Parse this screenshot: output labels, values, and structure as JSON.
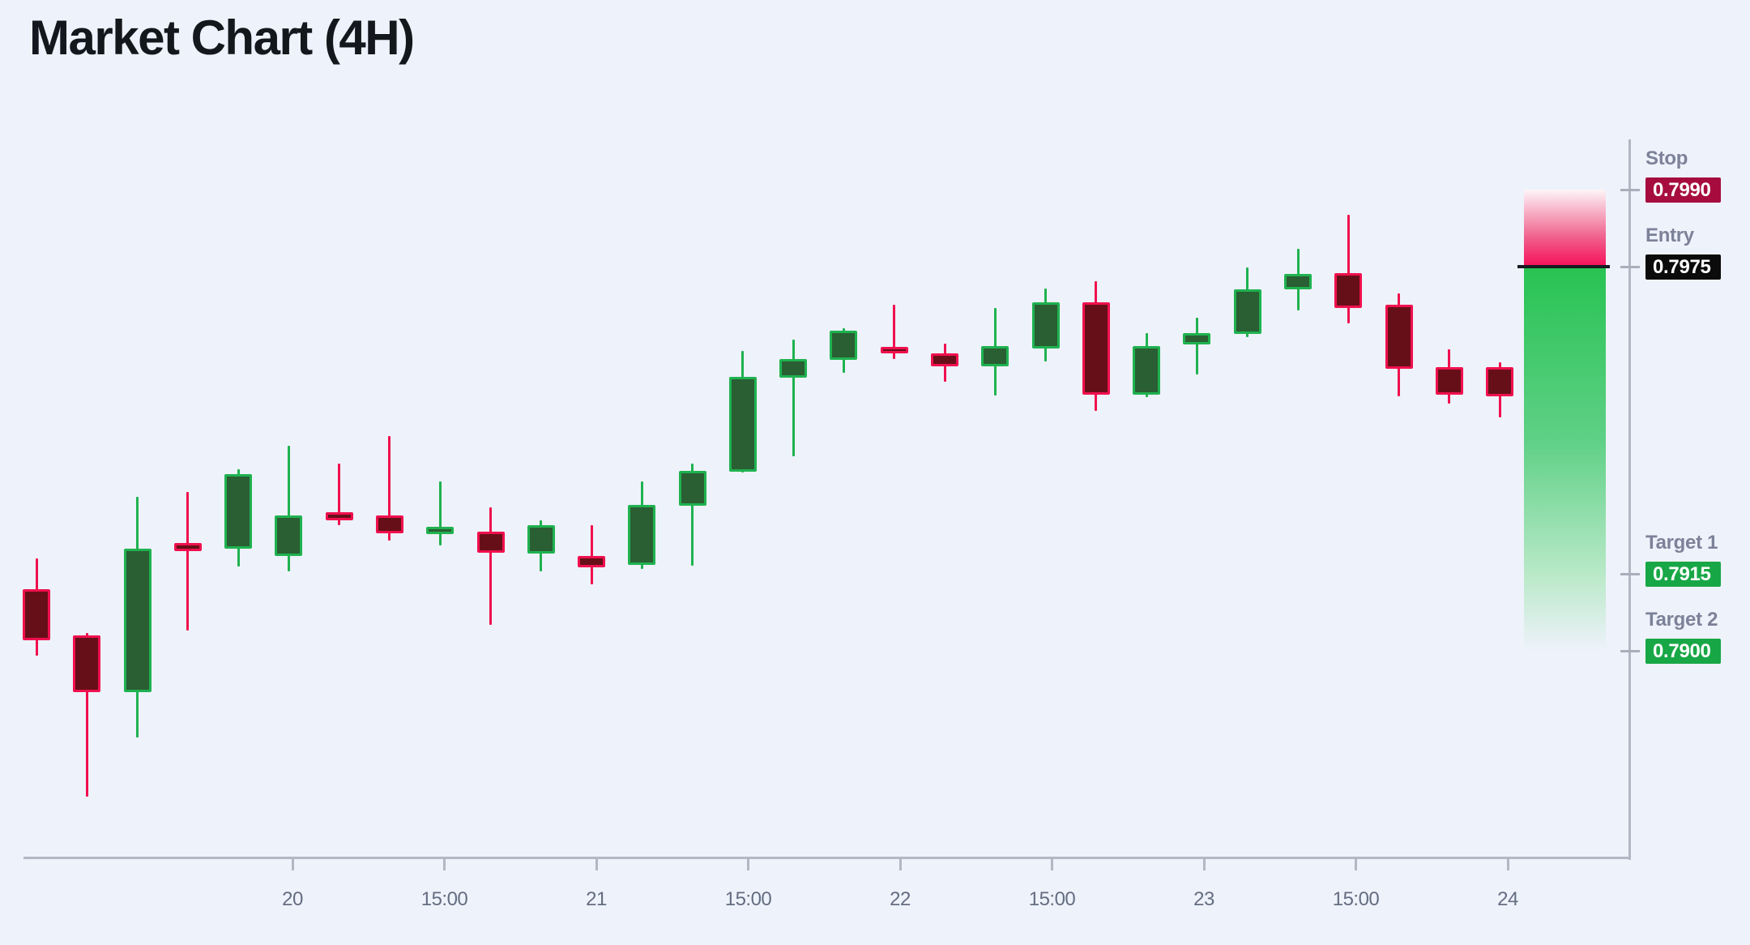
{
  "title": "Market Chart (4H)",
  "colors": {
    "background": "#eef2fb",
    "bull": "#1fb250",
    "bull_fill": "#2a5e33",
    "bear": "#f0104e",
    "bear_fill": "#670f18",
    "risk_zone": "#f7105b",
    "reward_zone": "#28c353",
    "entry_line": "#181b21",
    "axis": "#b3b7c3",
    "tick_text": "#646e81",
    "label_text": "#7c8298"
  },
  "chart_data": {
    "type": "candlestick",
    "title": "Market Chart (4H)",
    "timeframe": "4H",
    "legend": "none",
    "grid": "off",
    "x_tick_labels": [
      "20",
      "15:00",
      "21",
      "15:00",
      "22",
      "15:00",
      "23",
      "15:00",
      "24"
    ],
    "y_range_visible": [
      0.7871,
      0.799
    ],
    "candles": [
      {
        "o": 0.7912,
        "h": 0.7918,
        "l": 0.7899,
        "c": 0.7902
      },
      {
        "o": 0.7903,
        "h": 0.79035,
        "l": 0.78715,
        "c": 0.7892
      },
      {
        "o": 0.7892,
        "h": 0.793,
        "l": 0.7883,
        "c": 0.792
      },
      {
        "o": 0.7921,
        "h": 0.7931,
        "l": 0.7904,
        "c": 0.79195
      },
      {
        "o": 0.792,
        "h": 0.79355,
        "l": 0.79165,
        "c": 0.79345
      },
      {
        "o": 0.79185,
        "h": 0.794,
        "l": 0.79155,
        "c": 0.79265
      },
      {
        "o": 0.7927,
        "h": 0.79365,
        "l": 0.79245,
        "c": 0.79255
      },
      {
        "o": 0.79265,
        "h": 0.7942,
        "l": 0.79215,
        "c": 0.7923
      },
      {
        "o": 0.79228,
        "h": 0.7933,
        "l": 0.79205,
        "c": 0.79242
      },
      {
        "o": 0.79232,
        "h": 0.7928,
        "l": 0.7905,
        "c": 0.79192
      },
      {
        "o": 0.7919,
        "h": 0.79255,
        "l": 0.79155,
        "c": 0.79245
      },
      {
        "o": 0.79185,
        "h": 0.79245,
        "l": 0.7913,
        "c": 0.79163
      },
      {
        "o": 0.79168,
        "h": 0.7933,
        "l": 0.7916,
        "c": 0.79285
      },
      {
        "o": 0.79283,
        "h": 0.79366,
        "l": 0.79166,
        "c": 0.79351
      },
      {
        "o": 0.7935,
        "h": 0.79585,
        "l": 0.79348,
        "c": 0.79535
      },
      {
        "o": 0.79533,
        "h": 0.79608,
        "l": 0.7938,
        "c": 0.7957
      },
      {
        "o": 0.79568,
        "h": 0.7963,
        "l": 0.79542,
        "c": 0.79625
      },
      {
        "o": 0.79593,
        "h": 0.79676,
        "l": 0.7957,
        "c": 0.7958
      },
      {
        "o": 0.7958,
        "h": 0.796,
        "l": 0.79525,
        "c": 0.79555
      },
      {
        "o": 0.79555,
        "h": 0.7967,
        "l": 0.79498,
        "c": 0.79595
      },
      {
        "o": 0.7959,
        "h": 0.79708,
        "l": 0.79565,
        "c": 0.7968
      },
      {
        "o": 0.7968,
        "h": 0.79722,
        "l": 0.79468,
        "c": 0.795
      },
      {
        "o": 0.795,
        "h": 0.7962,
        "l": 0.79495,
        "c": 0.79595
      },
      {
        "o": 0.79598,
        "h": 0.7965,
        "l": 0.7954,
        "c": 0.7962
      },
      {
        "o": 0.79618,
        "h": 0.79748,
        "l": 0.79612,
        "c": 0.79705
      },
      {
        "o": 0.79705,
        "h": 0.79785,
        "l": 0.79665,
        "c": 0.79735
      },
      {
        "o": 0.79737,
        "h": 0.79852,
        "l": 0.7964,
        "c": 0.7967
      },
      {
        "o": 0.79676,
        "h": 0.79698,
        "l": 0.79497,
        "c": 0.79551
      },
      {
        "o": 0.79554,
        "h": 0.79589,
        "l": 0.79483,
        "c": 0.795
      },
      {
        "o": 0.79554,
        "h": 0.79563,
        "l": 0.79456,
        "c": 0.79497
      }
    ]
  },
  "overlay": {
    "levels": [
      {
        "id": "stop",
        "label": "Stop",
        "value": "0.7990",
        "price": 0.799,
        "badge_color": "#a60d3e"
      },
      {
        "id": "entry",
        "label": "Entry",
        "value": "0.7975",
        "price": 0.7975,
        "badge_color": "#0b0b0c"
      },
      {
        "id": "target1",
        "label": "Target 1",
        "value": "0.7915",
        "price": 0.7915,
        "badge_color": "#18a746"
      },
      {
        "id": "target2",
        "label": "Target 2",
        "value": "0.7900",
        "price": 0.79,
        "badge_color": "#18a746"
      }
    ],
    "zone": {
      "risk_top_price": 0.799,
      "entry_price": 0.7975,
      "reward_bottom_price": 0.79
    }
  }
}
